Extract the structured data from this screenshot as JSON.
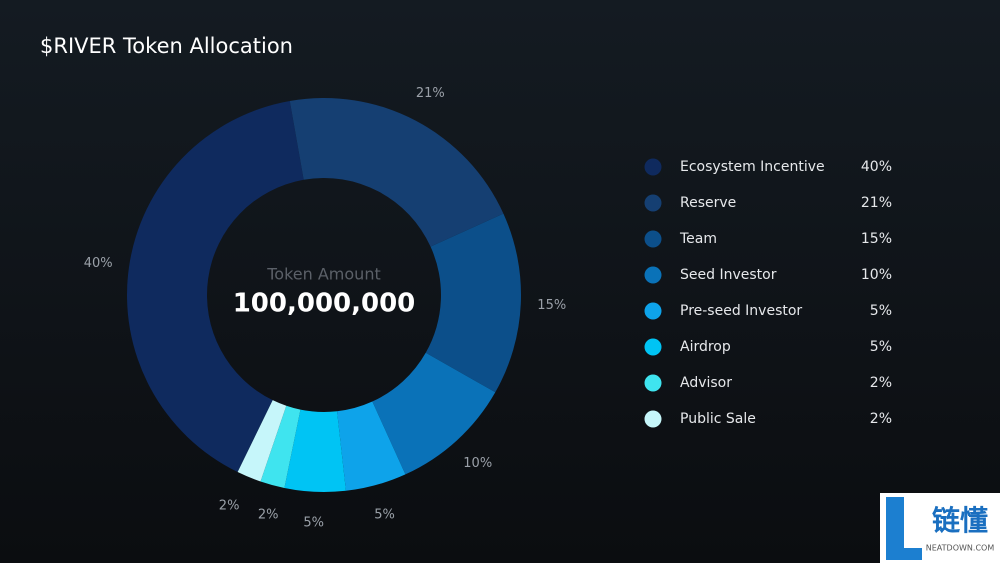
{
  "chart_data": {
    "type": "donut",
    "title": "$RIVER Token Allocation",
    "center_title": "Token Amount",
    "center_value": "100,000,000",
    "categories": [
      "Ecosystem Incentive",
      "Reserve",
      "Team",
      "Seed Investor",
      "Pre-seed Investor",
      "Airdrop",
      "Advisor",
      "Public Sale"
    ],
    "values": [
      40,
      21,
      15,
      10,
      5,
      5,
      2,
      2
    ],
    "value_labels": [
      "40%",
      "21%",
      "15%",
      "10%",
      "5%",
      "5%",
      "2%",
      "2%"
    ],
    "colors": [
      "#0f2a5e",
      "#153f72",
      "#0c4f8a",
      "#0a72b8",
      "#0ea3ea",
      "#00c4f4",
      "#3fe4ef",
      "#c6f6fa"
    ]
  },
  "watermark": {
    "text": "链懂",
    "subtext": "NEATDOWN.COM"
  }
}
